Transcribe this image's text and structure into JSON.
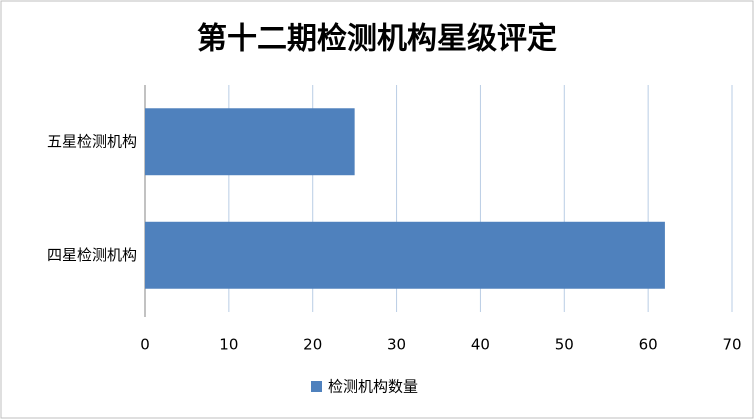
{
  "chart_data": {
    "type": "bar",
    "orientation": "horizontal",
    "title": "第十二期检测机构星级评定",
    "categories": [
      "五星检测机构",
      "四星检测机构"
    ],
    "series": [
      {
        "name": "检测机构数量",
        "color": "#4f81bd",
        "values": [
          25,
          62
        ]
      }
    ],
    "xlim": [
      0,
      70
    ],
    "xticks": [
      0,
      10,
      20,
      30,
      40,
      50,
      60,
      70
    ],
    "grid": true,
    "legend": "bottom"
  }
}
